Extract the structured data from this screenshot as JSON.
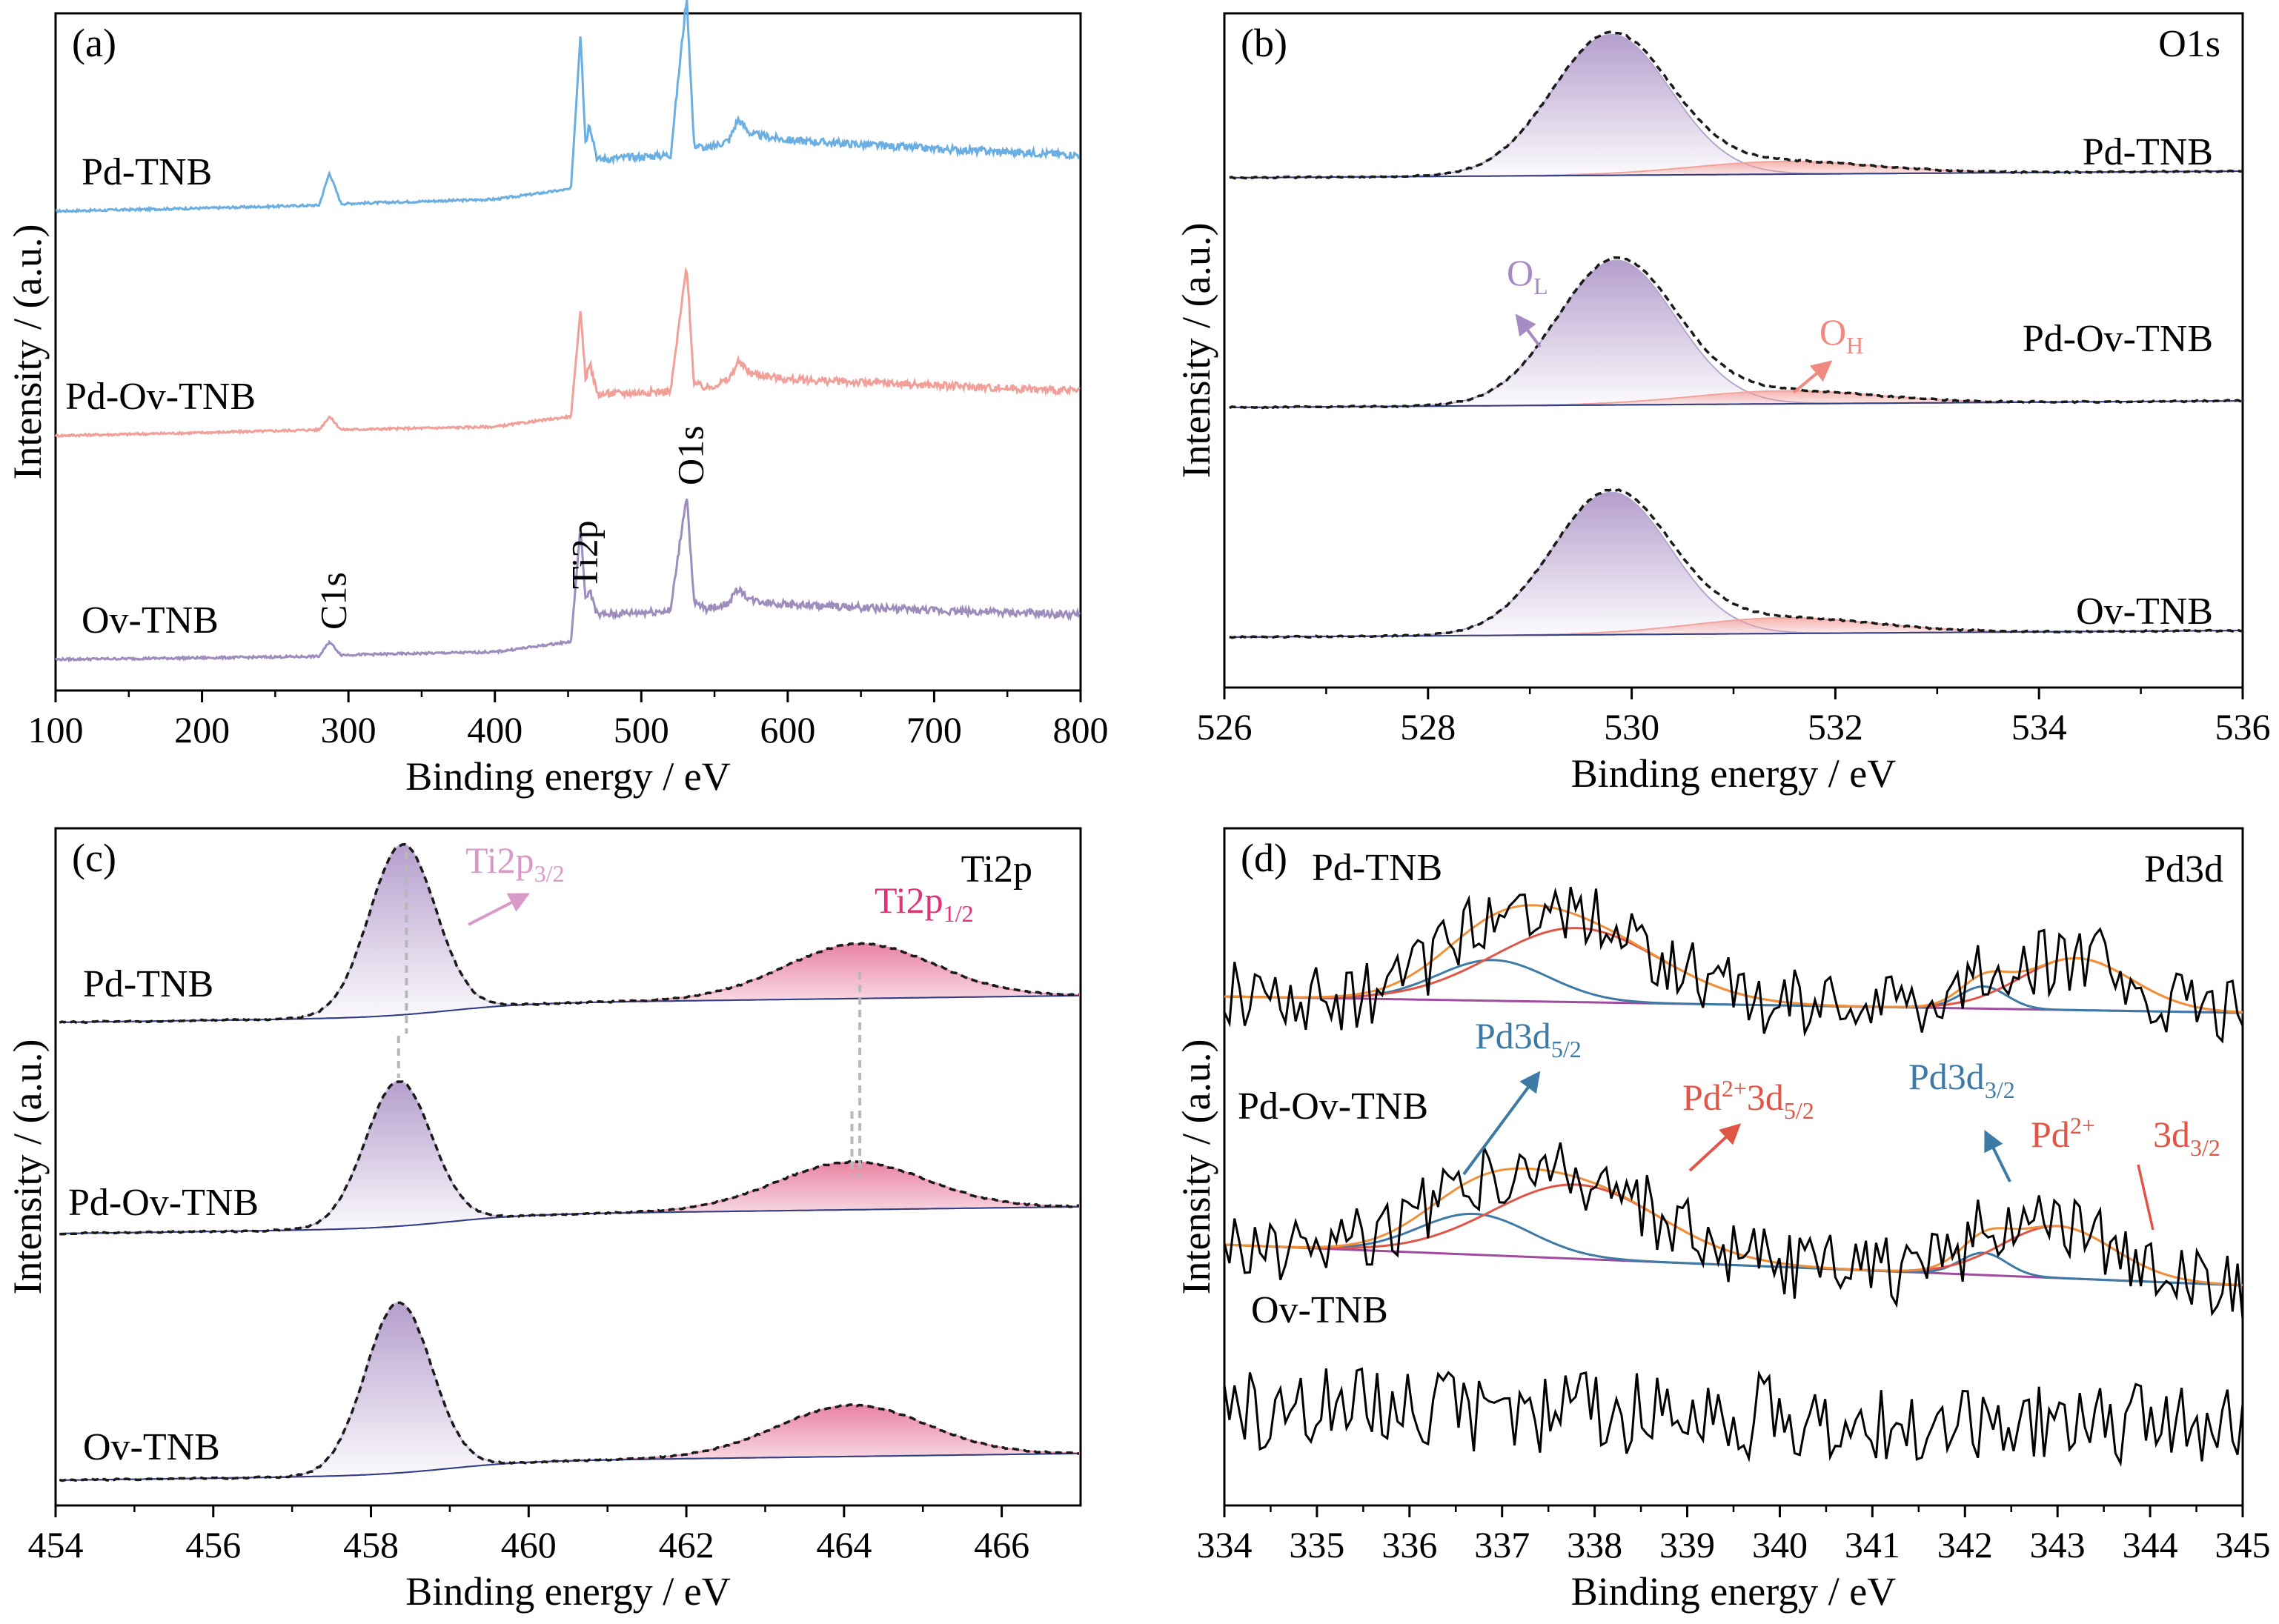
{
  "chart_data": [
    {
      "type": "line",
      "panel": "(a)",
      "xlabel": "Binding energy / eV",
      "ylabel": "Intensity / (a.u.)",
      "xlim": [
        100,
        800
      ],
      "xticks": [
        "100",
        "200",
        "300",
        "400",
        "500",
        "600",
        "700",
        "800"
      ],
      "series": [
        {
          "name": "Pd-TNB",
          "color": "#6aaee2",
          "offset": 2.0,
          "x": [
            100,
            200,
            280,
            287,
            295,
            400,
            452,
            458.5,
            462,
            464.5,
            470,
            520,
            531,
            536,
            545,
            560,
            566,
            575,
            600,
            650,
            700,
            800
          ],
          "y": [
            0.0,
            0.02,
            0.04,
            0.26,
            0.05,
            0.08,
            0.15,
            1.2,
            0.45,
            0.6,
            0.35,
            0.38,
            1.45,
            0.45,
            0.42,
            0.48,
            0.62,
            0.52,
            0.48,
            0.45,
            0.42,
            0.38
          ]
        },
        {
          "name": "Pd-Ov-TNB",
          "color": "#f0a099",
          "offset": 1.0,
          "x": [
            100,
            200,
            280,
            287,
            295,
            400,
            452,
            458.5,
            462,
            464.5,
            470,
            520,
            531,
            536,
            545,
            560,
            566,
            575,
            600,
            650,
            700,
            800
          ],
          "y": [
            0.0,
            0.02,
            0.04,
            0.13,
            0.04,
            0.06,
            0.13,
            0.85,
            0.38,
            0.5,
            0.28,
            0.3,
            1.15,
            0.35,
            0.32,
            0.38,
            0.5,
            0.42,
            0.38,
            0.36,
            0.34,
            0.3
          ]
        },
        {
          "name": "Ov-TNB",
          "color": "#9e8cbd",
          "offset": 0.0,
          "x": [
            100,
            200,
            280,
            287,
            295,
            400,
            452,
            458.5,
            462,
            464.5,
            470,
            520,
            531,
            536,
            545,
            560,
            566,
            575,
            600,
            650,
            700,
            800
          ],
          "y": [
            0.0,
            0.01,
            0.02,
            0.12,
            0.03,
            0.05,
            0.12,
            0.9,
            0.38,
            0.48,
            0.3,
            0.33,
            1.12,
            0.38,
            0.34,
            0.38,
            0.48,
            0.4,
            0.37,
            0.35,
            0.33,
            0.3
          ]
        }
      ],
      "annotations": [
        {
          "text": "C1s",
          "x": 287
        },
        {
          "text": "Ti2p",
          "x": 458.5
        },
        {
          "text": "O1s",
          "x": 531
        }
      ]
    },
    {
      "type": "area",
      "panel": "(b)",
      "corner_label": "O1s",
      "xlabel": "Binding energy / eV",
      "ylabel": "Intensity / (a.u.)",
      "xlim": [
        526,
        536
      ],
      "xticks": [
        "526",
        "528",
        "530",
        "532",
        "534",
        "536"
      ],
      "series": [
        {
          "name": "Pd-TNB",
          "OL": {
            "center": 529.8,
            "height": 1.0
          },
          "OH": {
            "center": 531.5,
            "height": 0.09
          }
        },
        {
          "name": "Pd-Ov-TNB",
          "OL": {
            "center": 529.85,
            "height": 1.0
          },
          "OH": {
            "center": 531.5,
            "height": 0.09
          }
        },
        {
          "name": "Ov-TNB",
          "OL": {
            "center": 529.8,
            "height": 1.0
          },
          "OH": {
            "center": 531.5,
            "height": 0.11
          }
        }
      ],
      "annotations": [
        {
          "base": "O",
          "sub": "L",
          "color": "#a78cc4"
        },
        {
          "base": "O",
          "sub": "H",
          "color": "#f08a80"
        }
      ]
    },
    {
      "type": "area",
      "panel": "(c)",
      "corner_label": "Ti2p",
      "xlabel": "Binding energy / eV",
      "ylabel": "Intensity / (a.u.)",
      "xlim": [
        454,
        467
      ],
      "xticks": [
        "454",
        "456",
        "458",
        "460",
        "462",
        "464",
        "466"
      ],
      "series": [
        {
          "name": "Pd-TNB",
          "p32": {
            "center": 458.4,
            "height": 1.0
          },
          "p12": {
            "center": 464.2,
            "height": 0.32
          }
        },
        {
          "name": "Pd-Ov-TNB",
          "p32": {
            "center": 458.35,
            "height": 0.85
          },
          "p12": {
            "center": 464.1,
            "height": 0.28
          }
        },
        {
          "name": "Ov-TNB",
          "p32": {
            "center": 458.35,
            "height": 1.0
          },
          "p12": {
            "center": 464.1,
            "height": 0.3
          }
        }
      ],
      "annotations": [
        {
          "base": "Ti2p",
          "sub": "3/2",
          "color": "#d99ac9"
        },
        {
          "base": "Ti2p",
          "sub": "1/2",
          "color": "#e0327a"
        }
      ]
    },
    {
      "type": "line",
      "panel": "(d)",
      "corner_label": "Pd3d",
      "xlabel": "Binding energy / eV",
      "ylabel": "Intensity / (a.u.)",
      "xlim": [
        334,
        345
      ],
      "xticks": [
        "334",
        "335",
        "336",
        "337",
        "338",
        "339",
        "340",
        "341",
        "342",
        "343",
        "344",
        "345"
      ],
      "series": [
        {
          "name": "Pd-TNB",
          "fit": true,
          "Pd0_3d52": 336.9,
          "Pd2_3d52": 337.8,
          "Pd0_3d32": 342.2,
          "Pd2_3d32": 343.2
        },
        {
          "name": "Pd-Ov-TNB",
          "fit": true,
          "Pd0_3d52": 336.7,
          "Pd2_3d52": 337.8,
          "Pd0_3d32": 342.2,
          "Pd2_3d32": 343.0
        },
        {
          "name": "Ov-TNB",
          "fit": false
        }
      ],
      "annotations": [
        {
          "base": "Pd3d",
          "sub": "5/2",
          "color": "#3d7aa6"
        },
        {
          "base": "Pd",
          "sup": "2+",
          "after": "3d",
          "sub": "5/2",
          "color": "#e05545"
        },
        {
          "base": "Pd3d",
          "sub": "3/2",
          "color": "#3d7aa6"
        },
        {
          "base": "Pd",
          "sup": "2+",
          "color": "#e05545"
        },
        {
          "base": "3d",
          "sub": "3/2",
          "color": "#e05545"
        }
      ]
    }
  ]
}
